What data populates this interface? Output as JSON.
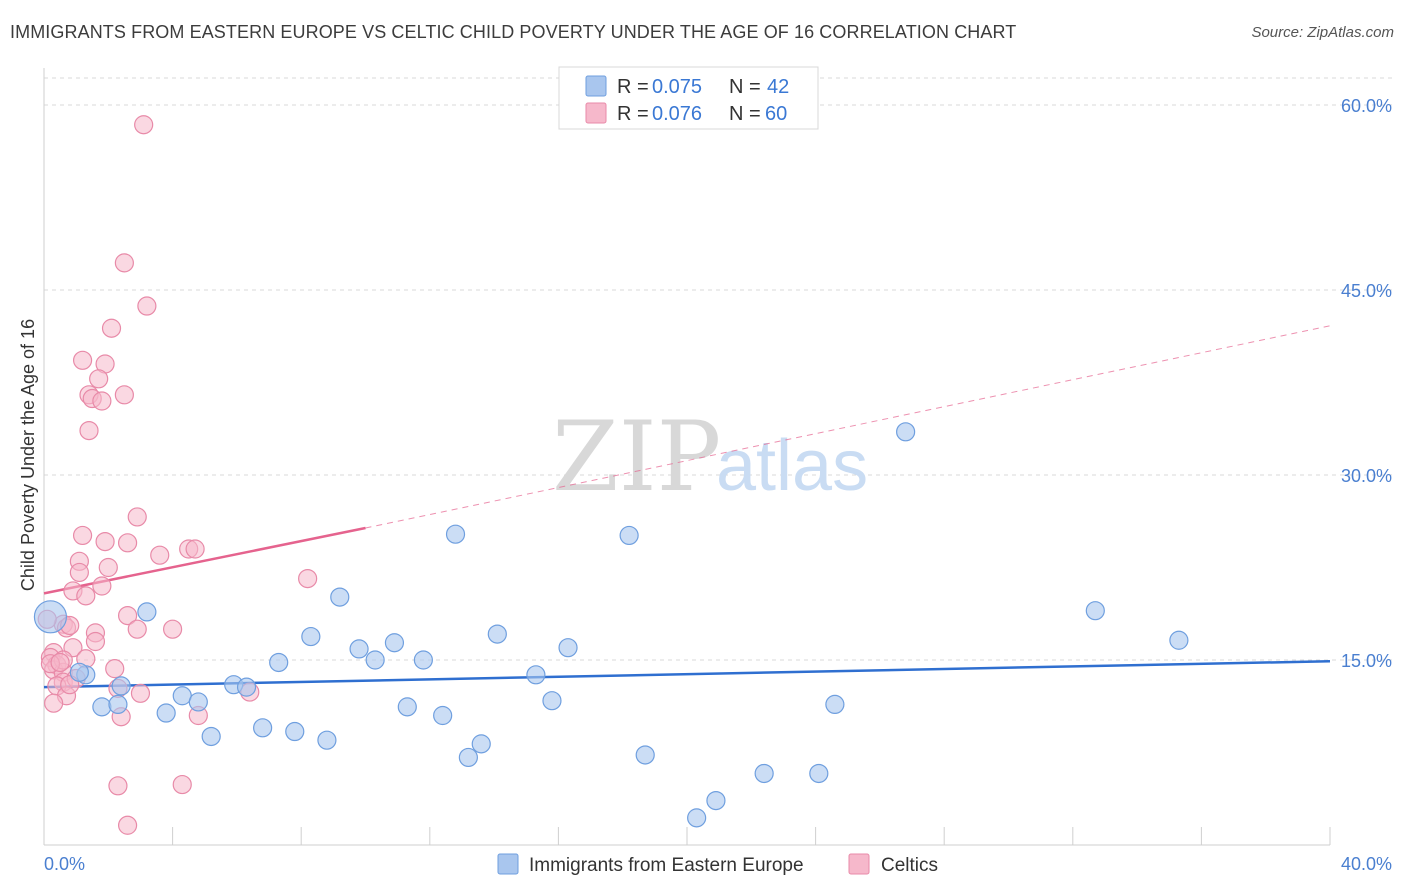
{
  "header": {
    "title": "IMMIGRANTS FROM EASTERN EUROPE VS CELTIC CHILD POVERTY UNDER THE AGE OF 16 CORRELATION CHART",
    "source": "Source: ZipAtlas.com"
  },
  "watermark": {
    "zip": "ZIP",
    "atlas": "atlas"
  },
  "colors": {
    "blue_fill": "#a9c6ee",
    "blue_stroke": "#6f9fdf",
    "blue_line": "#2f6fd0",
    "pink_fill": "#f6b8cb",
    "pink_stroke": "#e88aa8",
    "pink_line": "#e5638e",
    "tick_label": "#4a7fd0",
    "grid": "#d9d9d9"
  },
  "legend": {
    "series": [
      {
        "r_label": "R = ",
        "r_value": "0.075",
        "n_label": "N = ",
        "n_value": "42"
      },
      {
        "r_label": "R = ",
        "r_value": "0.076",
        "n_label": "N = ",
        "n_value": "60"
      }
    ]
  },
  "chart_data": {
    "type": "scatter",
    "title": "IMMIGRANTS FROM EASTERN EUROPE VS CELTIC CHILD POVERTY UNDER THE AGE OF 16 CORRELATION CHART",
    "xlabel": "",
    "ylabel": "Child Poverty Under the Age of 16",
    "xlim": [
      0,
      40
    ],
    "ylim": [
      0,
      63
    ],
    "x_tick_labels": [
      "0.0%",
      "40.0%"
    ],
    "y_ticks": [
      15,
      30,
      45,
      60
    ],
    "y_tick_labels": [
      "15.0%",
      "30.0%",
      "45.0%",
      "60.0%"
    ],
    "grid": true,
    "legend_position": "top-center",
    "series": [
      {
        "name": "Immigrants from Eastern Europe",
        "r": 0.075,
        "n": 42,
        "trend": {
          "x": [
            0,
            40
          ],
          "y": [
            12.8,
            14.9
          ]
        },
        "points": [
          {
            "x": 0.2,
            "y": 18.5,
            "big": true
          },
          {
            "x": 1.3,
            "y": 13.8
          },
          {
            "x": 1.8,
            "y": 11.2
          },
          {
            "x": 2.3,
            "y": 11.4
          },
          {
            "x": 2.4,
            "y": 12.9
          },
          {
            "x": 3.2,
            "y": 18.9
          },
          {
            "x": 3.8,
            "y": 10.7
          },
          {
            "x": 4.3,
            "y": 12.1
          },
          {
            "x": 4.8,
            "y": 11.6
          },
          {
            "x": 5.2,
            "y": 8.8
          },
          {
            "x": 5.9,
            "y": 13.0
          },
          {
            "x": 6.3,
            "y": 12.8
          },
          {
            "x": 6.8,
            "y": 9.5
          },
          {
            "x": 7.3,
            "y": 14.8
          },
          {
            "x": 7.8,
            "y": 9.2
          },
          {
            "x": 8.3,
            "y": 16.9
          },
          {
            "x": 8.8,
            "y": 8.5
          },
          {
            "x": 9.2,
            "y": 20.1
          },
          {
            "x": 9.8,
            "y": 15.9
          },
          {
            "x": 10.3,
            "y": 15.0
          },
          {
            "x": 10.9,
            "y": 16.4
          },
          {
            "x": 11.3,
            "y": 11.2
          },
          {
            "x": 11.8,
            "y": 15.0
          },
          {
            "x": 12.4,
            "y": 10.5
          },
          {
            "x": 12.8,
            "y": 25.2
          },
          {
            "x": 13.2,
            "y": 7.1
          },
          {
            "x": 13.6,
            "y": 8.2
          },
          {
            "x": 14.1,
            "y": 17.1
          },
          {
            "x": 15.3,
            "y": 13.8
          },
          {
            "x": 15.8,
            "y": 11.7
          },
          {
            "x": 16.3,
            "y": 16.0
          },
          {
            "x": 18.2,
            "y": 25.1
          },
          {
            "x": 18.7,
            "y": 7.3
          },
          {
            "x": 20.3,
            "y": 2.2
          },
          {
            "x": 20.9,
            "y": 3.6
          },
          {
            "x": 22.4,
            "y": 5.8
          },
          {
            "x": 24.1,
            "y": 5.8
          },
          {
            "x": 24.6,
            "y": 11.4
          },
          {
            "x": 26.8,
            "y": 33.5
          },
          {
            "x": 32.7,
            "y": 19.0
          },
          {
            "x": 35.3,
            "y": 16.6
          },
          {
            "x": 1.1,
            "y": 14.0
          }
        ]
      },
      {
        "name": "Celtics",
        "r": 0.076,
        "n": 60,
        "trend": {
          "x": [
            0,
            10
          ],
          "y": [
            20.4,
            25.7
          ]
        },
        "trend_dashed": {
          "x": [
            10,
            40
          ],
          "y": [
            25.7,
            42.1
          ]
        },
        "points": [
          {
            "x": 3.1,
            "y": 58.4
          },
          {
            "x": 2.5,
            "y": 47.2
          },
          {
            "x": 3.2,
            "y": 43.7
          },
          {
            "x": 2.1,
            "y": 41.9
          },
          {
            "x": 1.2,
            "y": 39.3
          },
          {
            "x": 1.9,
            "y": 39.0
          },
          {
            "x": 1.7,
            "y": 37.8
          },
          {
            "x": 1.4,
            "y": 36.5
          },
          {
            "x": 2.5,
            "y": 36.5
          },
          {
            "x": 1.5,
            "y": 36.2
          },
          {
            "x": 1.8,
            "y": 36.0
          },
          {
            "x": 1.4,
            "y": 33.6
          },
          {
            "x": 2.9,
            "y": 26.6
          },
          {
            "x": 1.2,
            "y": 25.1
          },
          {
            "x": 2.6,
            "y": 24.5
          },
          {
            "x": 1.9,
            "y": 24.6
          },
          {
            "x": 4.5,
            "y": 24.0
          },
          {
            "x": 4.7,
            "y": 24.0
          },
          {
            "x": 3.6,
            "y": 23.5
          },
          {
            "x": 1.1,
            "y": 23.0
          },
          {
            "x": 2.0,
            "y": 22.5
          },
          {
            "x": 1.1,
            "y": 22.1
          },
          {
            "x": 8.2,
            "y": 21.6
          },
          {
            "x": 1.8,
            "y": 21.0
          },
          {
            "x": 0.9,
            "y": 20.6
          },
          {
            "x": 1.3,
            "y": 20.2
          },
          {
            "x": 2.6,
            "y": 18.6
          },
          {
            "x": 0.6,
            "y": 17.9
          },
          {
            "x": 0.7,
            "y": 17.6
          },
          {
            "x": 0.8,
            "y": 17.8
          },
          {
            "x": 2.9,
            "y": 17.5
          },
          {
            "x": 4.0,
            "y": 17.5
          },
          {
            "x": 1.6,
            "y": 17.2
          },
          {
            "x": 1.6,
            "y": 16.5
          },
          {
            "x": 0.9,
            "y": 16.0
          },
          {
            "x": 0.3,
            "y": 15.6
          },
          {
            "x": 0.2,
            "y": 15.2
          },
          {
            "x": 1.3,
            "y": 15.1
          },
          {
            "x": 0.4,
            "y": 14.6
          },
          {
            "x": 0.3,
            "y": 14.2
          },
          {
            "x": 2.2,
            "y": 14.3
          },
          {
            "x": 0.6,
            "y": 14.0
          },
          {
            "x": 0.6,
            "y": 13.2
          },
          {
            "x": 0.4,
            "y": 12.9
          },
          {
            "x": 2.3,
            "y": 12.7
          },
          {
            "x": 3.0,
            "y": 12.3
          },
          {
            "x": 0.7,
            "y": 12.1
          },
          {
            "x": 6.4,
            "y": 12.4
          },
          {
            "x": 0.3,
            "y": 11.5
          },
          {
            "x": 2.4,
            "y": 10.4
          },
          {
            "x": 4.8,
            "y": 10.5
          },
          {
            "x": 2.3,
            "y": 4.8
          },
          {
            "x": 4.3,
            "y": 4.9
          },
          {
            "x": 2.6,
            "y": 1.6
          },
          {
            "x": 0.1,
            "y": 18.3
          },
          {
            "x": 0.6,
            "y": 15.0
          },
          {
            "x": 0.2,
            "y": 14.7
          },
          {
            "x": 1.0,
            "y": 13.5
          },
          {
            "x": 0.5,
            "y": 14.8
          },
          {
            "x": 0.8,
            "y": 13.0
          }
        ]
      }
    ]
  },
  "bottom_legend": {
    "items": [
      "Immigrants from Eastern Europe",
      "Celtics"
    ]
  }
}
